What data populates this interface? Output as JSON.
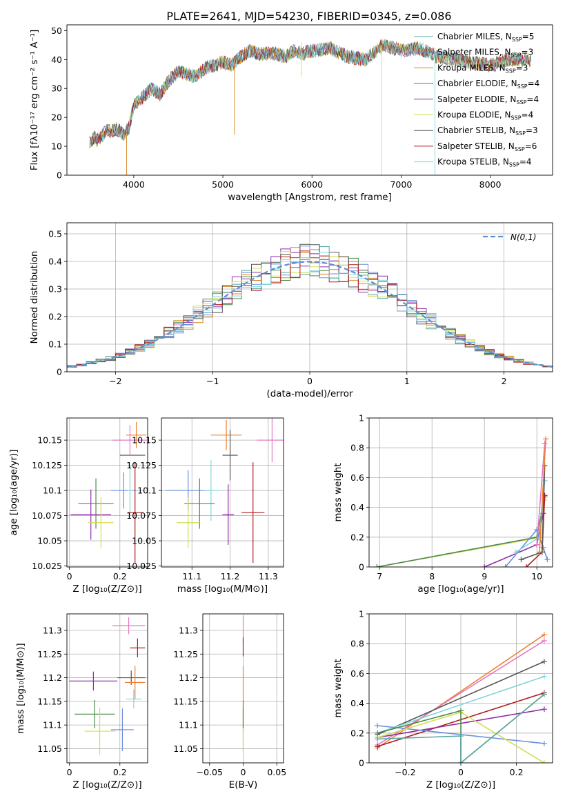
{
  "title": "PLATE=2641, MJD=54230, FIBERID=0345, z=0.086",
  "series_styles": [
    {
      "name": "Chabrier MILES",
      "nssp": "5",
      "color": "#5aa5a5"
    },
    {
      "name": "Salpeter MILES",
      "nssp": "3",
      "color": "#6a8ddb"
    },
    {
      "name": "Kroupa MILES",
      "nssp": "3",
      "color": "#d9821e"
    },
    {
      "name": "Chabrier ELODIE",
      "nssp": "4",
      "color": "#4d8a4d"
    },
    {
      "name": "Salpeter ELODIE",
      "nssp": "4",
      "color": "#8e2ea8"
    },
    {
      "name": "Kroupa ELODIE",
      "nssp": "4",
      "color": "#d3dd52"
    },
    {
      "name": "Chabrier STELIB",
      "nssp": "3",
      "color": "#555555"
    },
    {
      "name": "Salpeter STELIB",
      "nssp": "6",
      "color": "#b31b1b"
    },
    {
      "name": "Kroupa STELIB",
      "nssp": "4",
      "color": "#7fd6dd"
    }
  ],
  "extra_colors": {
    "pink": "#e377c2",
    "orange": "#ee7f2d",
    "normal_curve": "#5b8fd6",
    "grid": "#b0b0b0"
  },
  "chart_data": [
    {
      "id": "spectrum",
      "type": "line",
      "xlabel": "wavelength [Angstrom, rest frame]",
      "ylabel": "Flux [fλ10⁻¹⁷ erg cm⁻² s⁻¹ A⁻¹]",
      "xlim": [
        3250,
        8700
      ],
      "ylim": [
        0,
        52
      ],
      "xticks": [
        4000,
        5000,
        6000,
        7000,
        8000
      ],
      "yticks": [
        0,
        10,
        20,
        30,
        40,
        50
      ],
      "grid": false,
      "legend_position": "right",
      "continuum": {
        "x": [
          3500,
          3550,
          3600,
          3650,
          3700,
          3750,
          3800,
          3850,
          3900,
          3950,
          4000,
          4100,
          4200,
          4300,
          4400,
          4500,
          4600,
          4700,
          4800,
          4900,
          5000,
          5100,
          5200,
          5300,
          5400,
          5500,
          5600,
          5700,
          5800,
          5900,
          6000,
          6200,
          6400,
          6600,
          6800,
          7000,
          7200,
          7400,
          7600,
          7800,
          8000,
          8200,
          8400,
          8600,
          8700
        ],
        "y": [
          11,
          13,
          12,
          14,
          16,
          15,
          16,
          15,
          14,
          17,
          24,
          27,
          30,
          28,
          33,
          36,
          35,
          34,
          37,
          38,
          39,
          38,
          41,
          43,
          42,
          42,
          42,
          41,
          43,
          42,
          43,
          44,
          41,
          40,
          45,
          43,
          44,
          41,
          40,
          39,
          38,
          40,
          40,
          39,
          38
        ]
      }
    },
    {
      "id": "residuals",
      "type": "histogram",
      "xlabel": "(data-model)/error",
      "ylabel": "Normed distribution",
      "xlim": [
        -2.5,
        2.5
      ],
      "ylim": [
        0,
        0.54
      ],
      "xticks": [
        -2,
        -1,
        0,
        1,
        2
      ],
      "yticks": [
        0.0,
        0.1,
        0.2,
        0.3,
        0.4,
        0.5
      ],
      "grid": true,
      "legend": "N(0,1)",
      "legend_position": "top-right",
      "bin_width": 0.1
    },
    {
      "id": "age_vs_Z",
      "type": "errorbar",
      "xlabel": "Z [log₁₀(Z/Z⊙)]",
      "ylabel": "age  [log₁₀(age/yr)]",
      "xlim": [
        -0.01,
        0.31
      ],
      "ylim": [
        10.024,
        10.172
      ],
      "xticks": [
        0.0,
        0.2
      ],
      "yticks": [
        10.025,
        10.05,
        10.075,
        10.1,
        10.125,
        10.15
      ],
      "grid": true,
      "points": [
        {
          "c": 6,
          "x": 0.25,
          "xe": 0.05,
          "y": 10.135,
          "ye": 0.0
        },
        {
          "c": 9,
          "x": 0.24,
          "xe": 0.07,
          "y": 10.15,
          "ye": 0.015
        },
        {
          "c": 10,
          "x": 0.265,
          "xe": 0.04,
          "y": 10.155,
          "ye": 0.013
        },
        {
          "c": 1,
          "x": 0.215,
          "xe": 0.05,
          "y": 10.1,
          "ye": 0.018
        },
        {
          "c": 8,
          "x": 0.24,
          "xe": 0.01,
          "y": 10.1,
          "ye": 0.025
        },
        {
          "c": 7,
          "x": 0.26,
          "xe": 0.03,
          "y": 10.078,
          "ye": 0.05
        },
        {
          "c": 3,
          "x": 0.105,
          "xe": 0.07,
          "y": 10.087,
          "ye": 0.025
        },
        {
          "c": 4,
          "x": 0.085,
          "xe": 0.08,
          "y": 10.076,
          "ye": 0.025
        },
        {
          "c": 5,
          "x": 0.125,
          "xe": 0.05,
          "y": 10.068,
          "ye": 0.025
        }
      ]
    },
    {
      "id": "age_vs_mass",
      "type": "errorbar",
      "xlabel": "mass [log₁₀(M/M⊙)]",
      "ylabel": "",
      "xlim": [
        11.02,
        11.34
      ],
      "ylim": [
        10.024,
        10.172
      ],
      "xticks": [
        11.1,
        11.2,
        11.3
      ],
      "yticks": [
        10.025,
        10.05,
        10.075,
        10.1,
        10.125,
        10.15
      ],
      "grid": true,
      "points": [
        {
          "c": 10,
          "x": 11.19,
          "xe": 0.04,
          "y": 10.155,
          "ye": 0.015
        },
        {
          "c": 9,
          "x": 11.31,
          "xe": 0.04,
          "y": 10.15,
          "ye": 0.022
        },
        {
          "c": 6,
          "x": 11.2,
          "xe": 0.02,
          "y": 10.135,
          "ye": 0.025
        },
        {
          "c": 1,
          "x": 11.09,
          "xe": 0.06,
          "y": 10.1,
          "ye": 0.02
        },
        {
          "c": 8,
          "x": 11.15,
          "xe": 0.02,
          "y": 10.1,
          "ye": 0.03
        },
        {
          "c": 3,
          "x": 11.12,
          "xe": 0.04,
          "y": 10.087,
          "ye": 0.025
        },
        {
          "c": 7,
          "x": 11.26,
          "xe": 0.03,
          "y": 10.078,
          "ye": 0.05
        },
        {
          "c": 4,
          "x": 11.195,
          "xe": 0.015,
          "y": 10.076,
          "ye": 0.03
        },
        {
          "c": 5,
          "x": 11.09,
          "xe": 0.03,
          "y": 10.068,
          "ye": 0.025
        }
      ]
    },
    {
      "id": "weight_vs_age",
      "type": "line",
      "xlabel": "age  [log₁₀(age/yr)]",
      "ylabel": "mass weight",
      "xlim": [
        6.8,
        10.3
      ],
      "ylim": [
        0,
        1.0
      ],
      "xticks": [
        7,
        8,
        9,
        10
      ],
      "yticks": [
        0.0,
        0.2,
        0.4,
        0.6,
        0.8,
        1.0
      ],
      "grid": true,
      "series": [
        {
          "c": 5,
          "x": [
            6.95,
            10.1,
            10.15
          ],
          "y": [
            0.0,
            0.2,
            0.45
          ]
        },
        {
          "c": 3,
          "x": [
            6.95,
            10.0,
            10.15
          ],
          "y": [
            0.0,
            0.2,
            0.47
          ]
        },
        {
          "c": 4,
          "x": [
            9.0,
            10.0,
            10.12
          ],
          "y": [
            0.0,
            0.15,
            0.36
          ]
        },
        {
          "c": 1,
          "x": [
            9.4,
            10.0,
            10.12,
            10.2
          ],
          "y": [
            0.0,
            0.25,
            0.13,
            0.05
          ]
        },
        {
          "c": 7,
          "x": [
            9.8,
            10.1,
            10.15
          ],
          "y": [
            0.0,
            0.1,
            0.48
          ]
        },
        {
          "c": 8,
          "x": [
            9.6,
            10.05,
            10.15
          ],
          "y": [
            0.1,
            0.2,
            0.58
          ]
        },
        {
          "c": 6,
          "x": [
            9.7,
            10.1,
            10.15
          ],
          "y": [
            0.05,
            0.1,
            0.68
          ]
        },
        {
          "c": 9,
          "x": [
            10.0,
            10.15
          ],
          "y": [
            0.15,
            0.83
          ]
        },
        {
          "c": 10,
          "x": [
            10.05,
            10.17
          ],
          "y": [
            0.1,
            0.86
          ]
        }
      ]
    },
    {
      "id": "mass_vs_Z",
      "type": "errorbar",
      "xlabel": "Z [log₁₀(Z/Z⊙)]",
      "ylabel": "mass [log₁₀(M/M⊙)]",
      "xlim": [
        -0.01,
        0.31
      ],
      "ylim": [
        11.02,
        11.335
      ],
      "xticks": [
        0.0,
        0.2
      ],
      "yticks": [
        11.05,
        11.1,
        11.15,
        11.2,
        11.25,
        11.3
      ],
      "grid": true,
      "points": [
        {
          "c": 9,
          "x": 0.235,
          "xe": 0.065,
          "y": 11.31,
          "ye": 0.018
        },
        {
          "c": 7,
          "x": 0.27,
          "xe": 0.03,
          "y": 11.263,
          "ye": 0.02
        },
        {
          "c": 4,
          "x": 0.095,
          "xe": 0.095,
          "y": 11.193,
          "ye": 0.02
        },
        {
          "c": 6,
          "x": 0.245,
          "xe": 0.055,
          "y": 11.2,
          "ye": 0.015
        },
        {
          "c": 10,
          "x": 0.26,
          "xe": 0.04,
          "y": 11.19,
          "ye": 0.035
        },
        {
          "c": 8,
          "x": 0.255,
          "xe": 0.03,
          "y": 11.155,
          "ye": 0.02
        },
        {
          "c": 3,
          "x": 0.1,
          "xe": 0.08,
          "y": 11.123,
          "ye": 0.03
        },
        {
          "c": 1,
          "x": 0.21,
          "xe": 0.045,
          "y": 11.09,
          "ye": 0.045
        },
        {
          "c": 5,
          "x": 0.12,
          "xe": 0.06,
          "y": 11.087,
          "ye": 0.05
        }
      ]
    },
    {
      "id": "mass_vs_ebv",
      "type": "errorbar",
      "xlabel": "E(B-V)",
      "ylabel": "",
      "xlim": [
        -0.06,
        0.06
      ],
      "ylim": [
        11.02,
        11.335
      ],
      "xticks": [
        -0.05,
        0.0,
        0.05
      ],
      "yticks": [
        11.05,
        11.1,
        11.15,
        11.2,
        11.25,
        11.3
      ],
      "grid": true,
      "points": [
        {
          "c": 9,
          "x": 0.0,
          "xe": 0.0,
          "y": 11.3,
          "ye": 0.03
        },
        {
          "c": 7,
          "x": 0.0,
          "xe": 0.0,
          "y": 11.265,
          "ye": 0.02
        },
        {
          "c": 10,
          "x": 0.0,
          "xe": 0.0,
          "y": 11.19,
          "ye": 0.035
        },
        {
          "c": 1,
          "x": 0.0,
          "xe": 0.0,
          "y": 11.09,
          "ye": 0.045
        },
        {
          "c": 5,
          "x": 0.0,
          "xe": 0.0,
          "y": 11.087,
          "ye": 0.05
        },
        {
          "c": 3,
          "x": 0.0,
          "xe": 0.0,
          "y": 11.123,
          "ye": 0.03
        }
      ]
    },
    {
      "id": "weight_vs_Z",
      "type": "line",
      "xlabel": "Z [log₁₀(Z/Z⊙)]",
      "ylabel": "mass weight",
      "xlim": [
        -0.33,
        0.33
      ],
      "ylim": [
        0,
        1.0
      ],
      "xticks": [
        -0.2,
        0.0,
        0.2
      ],
      "yticks": [
        0.0,
        0.2,
        0.4,
        0.6,
        0.8,
        1.0
      ],
      "grid": true,
      "series": [
        {
          "c": 10,
          "x": [
            -0.3,
            0.3
          ],
          "y": [
            0.1,
            0.86
          ]
        },
        {
          "c": 9,
          "x": [
            -0.3,
            0.3
          ],
          "y": [
            0.12,
            0.82
          ]
        },
        {
          "c": 6,
          "x": [
            -0.3,
            0.3
          ],
          "y": [
            0.19,
            0.68
          ]
        },
        {
          "c": 8,
          "x": [
            -0.3,
            0.3
          ],
          "y": [
            0.2,
            0.58
          ]
        },
        {
          "c": 7,
          "x": [
            -0.3,
            0.3
          ],
          "y": [
            0.11,
            0.47
          ]
        },
        {
          "c": 4,
          "x": [
            -0.3,
            0.3
          ],
          "y": [
            0.17,
            0.36
          ]
        },
        {
          "c": 1,
          "x": [
            -0.3,
            0.3
          ],
          "y": [
            0.25,
            0.13
          ]
        },
        {
          "c": 5,
          "x": [
            -0.3,
            0.0,
            0.3
          ],
          "y": [
            0.17,
            0.34,
            0.0
          ]
        },
        {
          "c": 3,
          "x": [
            -0.3,
            0.0,
            0.0,
            0.3
          ],
          "y": [
            0.2,
            0.35,
            0.0,
            0.46
          ]
        },
        {
          "c": 0,
          "x": [
            -0.3,
            0.0,
            0.0,
            0.3
          ],
          "y": [
            0.16,
            0.18,
            0.0,
            0.46
          ]
        }
      ]
    }
  ]
}
